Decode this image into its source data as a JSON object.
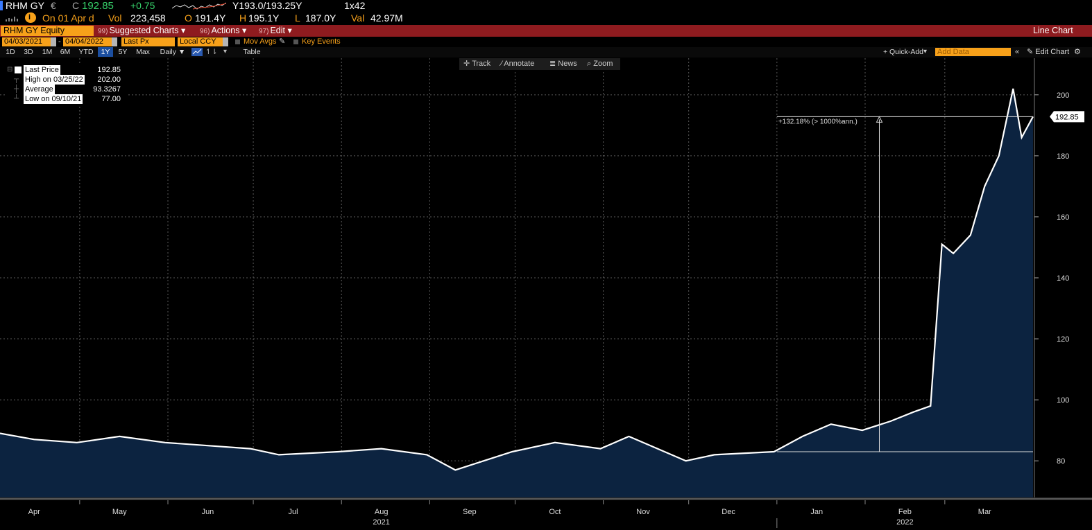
{
  "quote": {
    "ticker": "RHM GY",
    "currency_symbol": "€",
    "c_flag": "C",
    "last": "192.85",
    "change": "+0.75",
    "bid_ask": "Y193.0/193.25Y",
    "size": "1x42",
    "on_date": "On 01 Apr d",
    "vol_label": "Vol",
    "vol": "223,458",
    "open_label": "O",
    "open": "191.4Y",
    "high_label": "H",
    "high": "195.1Y",
    "low_label": "L",
    "low": "187.0Y",
    "val_label": "Val",
    "val": "42.97M"
  },
  "toolbar": {
    "security": "RHM GY Equity",
    "suggested_num": "99)",
    "suggested": "Suggested Charts",
    "actions_num": "96)",
    "actions": "Actions",
    "edit_num": "97)",
    "edit": "Edit",
    "chart_type": "Line Chart"
  },
  "params": {
    "start_date": "04/03/2021",
    "end_date": "04/04/2022",
    "field": "Last Px",
    "currency": "Local CCY",
    "mov_avgs": "Mov Avgs",
    "key_events": "Key Events"
  },
  "periods": {
    "items": [
      "1D",
      "3D",
      "1M",
      "6M",
      "YTD",
      "1Y",
      "5Y",
      "Max"
    ],
    "selected": "1Y",
    "frequency": "Daily",
    "table": "Table",
    "quick_add": "+ Quick-Add",
    "add_data": "Add Data",
    "edit_chart": "Edit Chart"
  },
  "chart_tools": {
    "track": "Track",
    "annotate": "Annotate",
    "news": "News",
    "zoom": "Zoom"
  },
  "legend": {
    "last_price_label": "Last Price",
    "last_price": "192.85",
    "high_label": "High on 03/25/22",
    "high": "202.00",
    "average_label": "Average",
    "average": "93.3267",
    "low_label": "Low on 09/10/21",
    "low": "77.00"
  },
  "colors": {
    "line": "#ffffff",
    "area": "#0c2340",
    "amber": "#f7a11a",
    "red_bar": "#8e1b1f"
  },
  "chart_data": {
    "type": "area",
    "ylim": [
      68,
      212
    ],
    "y_ticks": [
      80,
      100,
      120,
      140,
      160,
      180,
      200
    ],
    "last_value_label": "192.85",
    "annotation": "+132.18% (> 1000%ann.)",
    "annotation_base": 83,
    "annotation_top": 192.85,
    "x_month_labels": [
      "Apr",
      "May",
      "Jun",
      "Jul",
      "Aug",
      "Sep",
      "Oct",
      "Nov",
      "Dec",
      "Jan",
      "Feb",
      "Mar"
    ],
    "x_year_labels": [
      "2021",
      "2022"
    ],
    "x": [
      "2021-04-03",
      "2021-04-15",
      "2021-04-30",
      "2021-05-15",
      "2021-05-31",
      "2021-06-15",
      "2021-06-30",
      "2021-07-10",
      "2021-07-31",
      "2021-08-15",
      "2021-08-31",
      "2021-09-10",
      "2021-09-30",
      "2021-10-15",
      "2021-10-31",
      "2021-11-10",
      "2021-11-30",
      "2021-12-10",
      "2021-12-31",
      "2022-01-10",
      "2022-01-20",
      "2022-01-31",
      "2022-02-10",
      "2022-02-18",
      "2022-02-24",
      "2022-02-28",
      "2022-03-04",
      "2022-03-10",
      "2022-03-15",
      "2022-03-20",
      "2022-03-25",
      "2022-03-28",
      "2022-04-01"
    ],
    "values": [
      89,
      87,
      86,
      88,
      86,
      85,
      84,
      82,
      83,
      84,
      82,
      77,
      83,
      86,
      84,
      88,
      80,
      82,
      83,
      88,
      92,
      90,
      93,
      96,
      98,
      151,
      148,
      154,
      170,
      180,
      202,
      186,
      192.85
    ]
  }
}
